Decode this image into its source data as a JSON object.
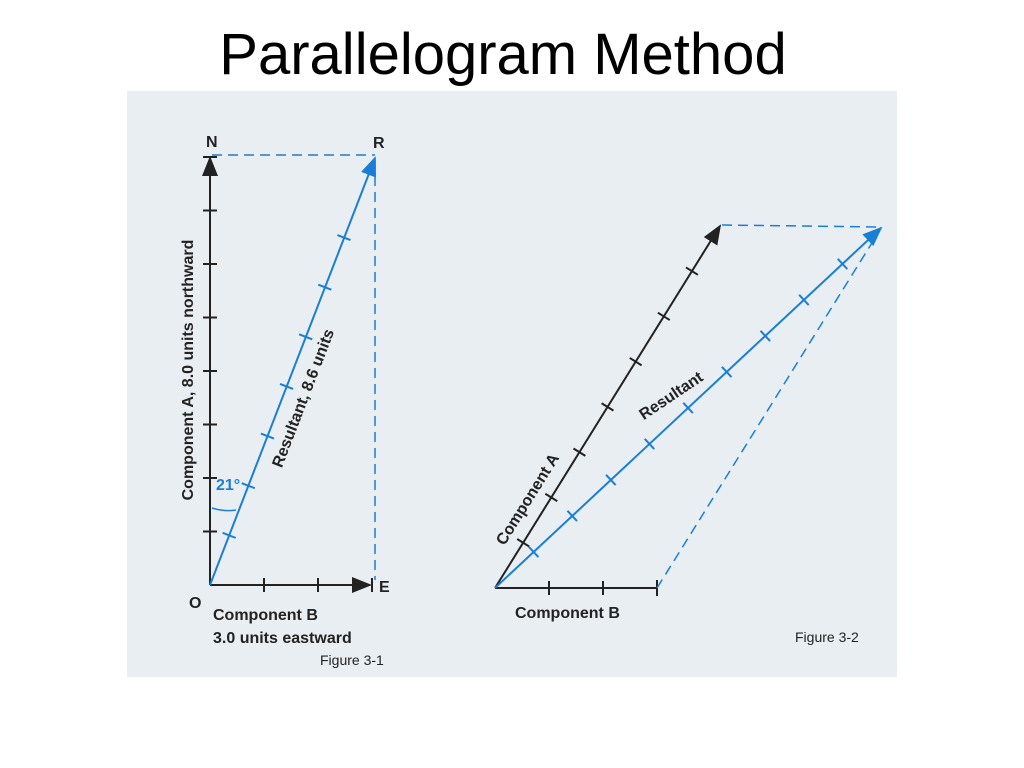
{
  "header": {
    "title": "Parallelogram Method"
  },
  "figure_1": {
    "north": "N",
    "resultant_end": "R",
    "origin": "O",
    "east": "E",
    "component_a": "Component A, 8.0 units northward",
    "resultant": "Resultant, 8.6 units",
    "angle": "21°",
    "component_b": "Component B",
    "component_b_detail": "3.0 units eastward",
    "caption": "Figure 3-1"
  },
  "figure_2": {
    "component_a": "Component A",
    "resultant": "Resultant",
    "component_b": "Component B",
    "caption": "Figure 3-2"
  }
}
